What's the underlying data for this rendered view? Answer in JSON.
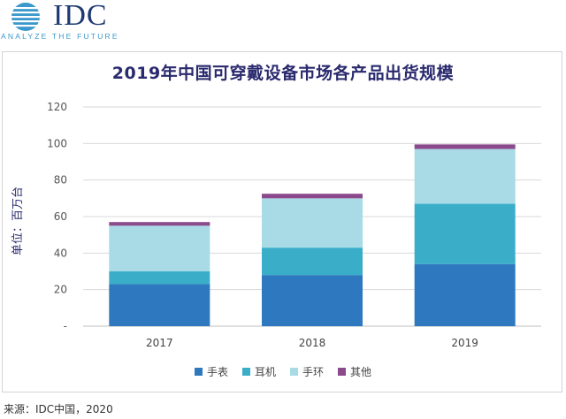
{
  "logo": {
    "wordmark": "IDC",
    "tagline": "ANALYZE THE FUTURE"
  },
  "source": "来源：IDC中国，2020",
  "colors": {
    "grid": "#d9d9d9",
    "title": "#2a2a6e"
  },
  "chart_data": {
    "type": "bar",
    "stacked": true,
    "title": "2019年中国可穿戴设备市场各产品出货规模",
    "xlabel": "",
    "ylabel": "单位：百万台",
    "categories": [
      "2017",
      "2018",
      "2019"
    ],
    "ylim": [
      0,
      120
    ],
    "yticks": [
      0,
      20,
      40,
      60,
      80,
      100,
      120
    ],
    "ytick_labels": [
      "-",
      "20",
      "40",
      "60",
      "80",
      "100",
      "120"
    ],
    "grid": true,
    "legend_position": "bottom",
    "series": [
      {
        "name": "手表",
        "color": "#2d78be",
        "values": [
          23,
          28,
          34
        ]
      },
      {
        "name": "耳机",
        "color": "#3aaec9",
        "values": [
          7,
          15,
          33
        ]
      },
      {
        "name": "手环",
        "color": "#a8dbe5",
        "values": [
          25,
          27,
          30
        ]
      },
      {
        "name": "其他",
        "color": "#8a4a8c",
        "values": [
          2,
          2.5,
          2.5
        ]
      }
    ]
  }
}
